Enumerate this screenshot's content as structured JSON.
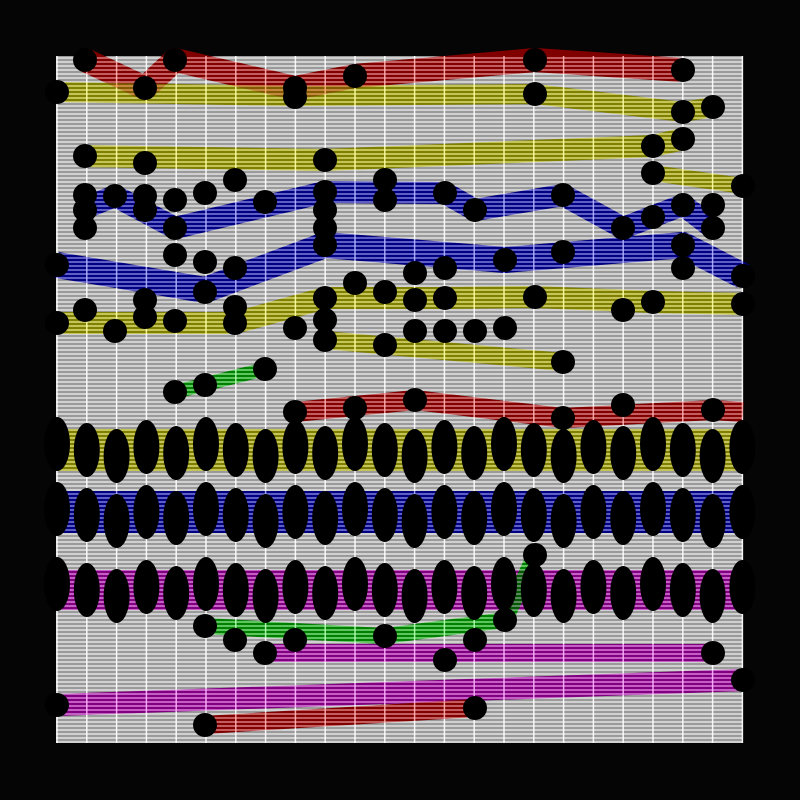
{
  "palette": {
    "background": "#050505",
    "grid_fill": "#9a9a9a",
    "grid_line": "#ffffff",
    "red": "#800000",
    "yellow": "#808000",
    "blue": "#000080",
    "green": "#008000",
    "magenta": "#800080",
    "dot": "#000000"
  },
  "bands": [
    {
      "color": "red"
    },
    {
      "color": "yellow"
    },
    {
      "color": "yellow"
    },
    {
      "color": "yellow"
    },
    {
      "color": "blue"
    },
    {
      "color": "blue"
    },
    {
      "color": "yellow"
    },
    {
      "color": "yellow"
    },
    {
      "color": "green"
    },
    {
      "color": "red"
    },
    {
      "color": "yellow"
    },
    {
      "color": "blue"
    },
    {
      "color": "magenta"
    },
    {
      "color": "green"
    },
    {
      "color": "magenta"
    },
    {
      "color": "magenta"
    },
    {
      "color": "red"
    }
  ]
}
